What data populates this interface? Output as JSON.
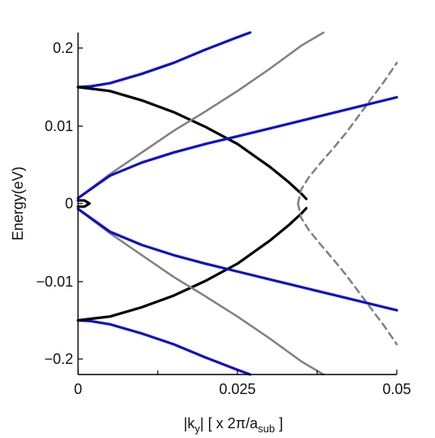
{
  "chart_data": {
    "type": "line",
    "xlabel_parts": [
      "|k",
      "y",
      "| [ x 2π/a",
      "sub",
      " ]"
    ],
    "ylabel": "Energy(eV)",
    "xlim": [
      0,
      0.05
    ],
    "y_ticks": [
      {
        "value": 0.2,
        "label": "0.2"
      },
      {
        "value": 0.01,
        "label": "0.01"
      },
      {
        "value": 0,
        "label": "0"
      },
      {
        "value": -0.01,
        "label": "−0.01"
      },
      {
        "value": -0.2,
        "label": "−0.2"
      }
    ],
    "x_ticks": [
      {
        "value": 0,
        "label": "0"
      },
      {
        "value": 0.025,
        "label": "0.025"
      },
      {
        "value": 0.05,
        "label": "0.05"
      }
    ],
    "x_minor_ticks": [
      0.0125,
      0.0375
    ],
    "colors": {
      "blue": "#1010c8",
      "black": "#000000",
      "gray": "#808080"
    },
    "series": [
      {
        "color": "blue",
        "style": "solid",
        "x": [
          0,
          0.002,
          0.005,
          0.01,
          0.015,
          0.02,
          0.025,
          0.027
        ],
        "y": [
          0.015,
          0.0151,
          0.0155,
          0.0167,
          0.0181,
          0.0198,
          0.0214,
          0.022
        ]
      },
      {
        "color": "blue",
        "style": "solid",
        "x": [
          0,
          0.002,
          0.005,
          0.01,
          0.015,
          0.02,
          0.025,
          0.027
        ],
        "y": [
          -0.015,
          -0.0151,
          -0.0155,
          -0.0167,
          -0.0181,
          -0.0198,
          -0.0214,
          -0.022
        ]
      },
      {
        "color": "black",
        "style": "solid",
        "x": [
          0,
          0.005,
          0.01,
          0.015,
          0.02,
          0.025,
          0.03,
          0.033,
          0.035,
          0.0358
        ],
        "y": [
          0.015,
          0.0145,
          0.0133,
          0.0118,
          0.0099,
          0.0077,
          0.0048,
          0.0028,
          0.0013,
          0.0006
        ]
      },
      {
        "color": "black",
        "style": "solid",
        "x": [
          0,
          0.005,
          0.01,
          0.015,
          0.02,
          0.025,
          0.03,
          0.033,
          0.035,
          0.0358
        ],
        "y": [
          -0.015,
          -0.0145,
          -0.0133,
          -0.0118,
          -0.0099,
          -0.0077,
          -0.0048,
          -0.0028,
          -0.0013,
          -0.0006
        ]
      },
      {
        "color": "black",
        "style": "loop",
        "x": [
          0,
          0.001,
          0.0018,
          0.001,
          0
        ],
        "y": [
          0.0004,
          0.0004,
          0,
          -0.0004,
          -0.0004
        ]
      },
      {
        "color": "gray",
        "style": "solid",
        "x": [
          0,
          0.005,
          0.01,
          0.015,
          0.02,
          0.025,
          0.03,
          0.035,
          0.0385
        ],
        "y": [
          0.0007,
          0.0038,
          0.0066,
          0.0094,
          0.0119,
          0.0145,
          0.0173,
          0.0203,
          0.022
        ]
      },
      {
        "color": "gray",
        "style": "solid",
        "x": [
          0,
          0.005,
          0.01,
          0.015,
          0.02,
          0.025,
          0.03,
          0.035,
          0.0385
        ],
        "y": [
          -0.0007,
          -0.0038,
          -0.0066,
          -0.0094,
          -0.0119,
          -0.0145,
          -0.0173,
          -0.0203,
          -0.022
        ]
      },
      {
        "color": "gray",
        "style": "dashed",
        "x": [
          0.0345,
          0.035,
          0.0362,
          0.038,
          0.04,
          0.042,
          0.044,
          0.046,
          0.048,
          0.05
        ],
        "y": [
          0,
          0.0018,
          0.0034,
          0.0052,
          0.0071,
          0.0091,
          0.0113,
          0.0135,
          0.0157,
          0.0181
        ]
      },
      {
        "color": "gray",
        "style": "dashed",
        "x": [
          0.0345,
          0.035,
          0.0362,
          0.038,
          0.04,
          0.042,
          0.044,
          0.046,
          0.048,
          0.05
        ],
        "y": [
          0,
          -0.0018,
          -0.0034,
          -0.0052,
          -0.0071,
          -0.0091,
          -0.0113,
          -0.0135,
          -0.0157,
          -0.0181
        ]
      },
      {
        "color": "blue",
        "style": "solid",
        "x": [
          0,
          0.005,
          0.01,
          0.015,
          0.02,
          0.025,
          0.03,
          0.035,
          0.04,
          0.045,
          0.05
        ],
        "y": [
          0.0007,
          0.0036,
          0.0053,
          0.0066,
          0.0077,
          0.0087,
          0.0097,
          0.0107,
          0.0117,
          0.0127,
          0.0137
        ]
      },
      {
        "color": "blue",
        "style": "solid",
        "x": [
          0,
          0.005,
          0.01,
          0.015,
          0.02,
          0.025,
          0.03,
          0.035,
          0.04,
          0.045,
          0.05
        ],
        "y": [
          -0.0007,
          -0.0036,
          -0.0053,
          -0.0066,
          -0.0077,
          -0.0087,
          -0.0097,
          -0.0107,
          -0.0117,
          -0.0127,
          -0.0137
        ]
      }
    ]
  }
}
